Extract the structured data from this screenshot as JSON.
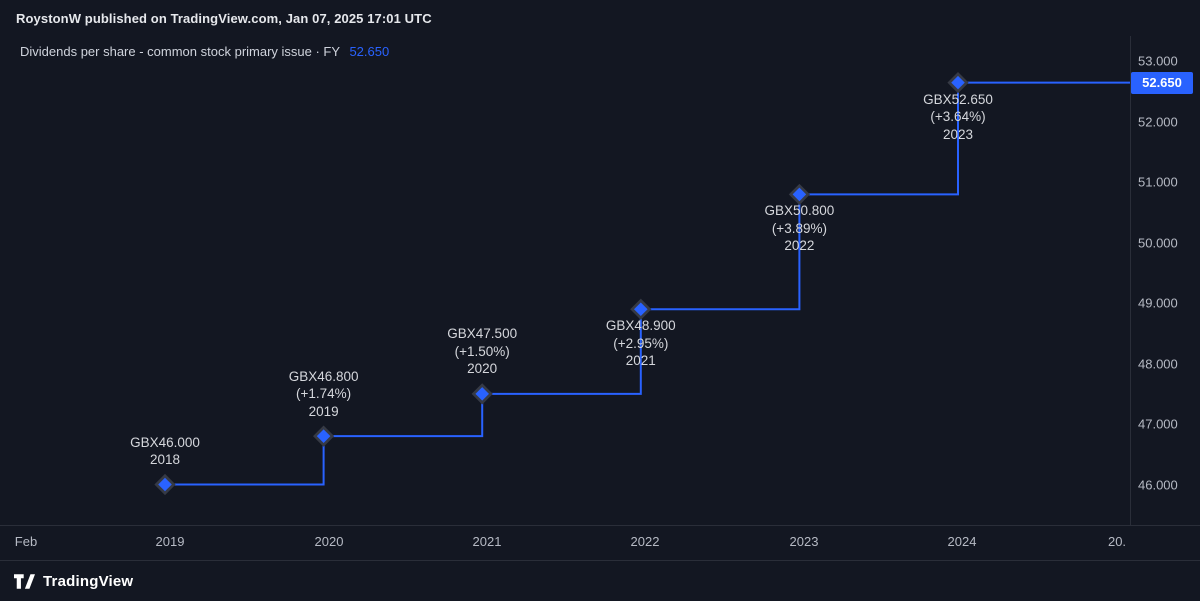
{
  "colors": {
    "accent": "#2962FF",
    "background": "#131722",
    "separator": "#2A2E39",
    "marker_halo": "#363A45",
    "label_text": "#D5D7DC",
    "axis_text": "#B6BAC4"
  },
  "attribution": {
    "text": "RoystonW published on TradingView.com, Jan 07, 2025 17:01 UTC"
  },
  "title": {
    "series_name": "Dividends per share - common stock primary issue · FY",
    "current_value": "52.650"
  },
  "price_label": {
    "text": "52.650",
    "value": 52.65
  },
  "footer": {
    "brand": "TradingView"
  },
  "chart_data": {
    "type": "line",
    "subtype": "step",
    "title": "Dividends per share - common stock primary issue (FY)",
    "unit": "GBX",
    "legend_position": "none",
    "grid": "off",
    "points": [
      {
        "year": 2018,
        "value": 46.0,
        "label_value": "GBX46.000",
        "label_pct": "",
        "label_year": "2018",
        "label_position": "above"
      },
      {
        "year": 2019,
        "value": 46.8,
        "label_value": "GBX46.800",
        "label_pct": "(+1.74%)",
        "label_year": "2019",
        "label_position": "above"
      },
      {
        "year": 2020,
        "value": 47.5,
        "label_value": "GBX47.500",
        "label_pct": "(+1.50%)",
        "label_year": "2020",
        "label_position": "above"
      },
      {
        "year": 2021,
        "value": 48.9,
        "label_value": "GBX48.900",
        "label_pct": "(+2.95%)",
        "label_year": "2021",
        "label_position": "below"
      },
      {
        "year": 2022,
        "value": 50.8,
        "label_value": "GBX50.800",
        "label_pct": "(+3.89%)",
        "label_year": "2022",
        "label_position": "below"
      },
      {
        "year": 2023,
        "value": 52.65,
        "label_value": "GBX52.650",
        "label_pct": "(+3.64%)",
        "label_year": "2023",
        "label_position": "below"
      }
    ],
    "y_axis": {
      "range": [
        45.6,
        53.3
      ],
      "ticks": [
        {
          "value": 53,
          "label": "53.000"
        },
        {
          "value": 52,
          "label": "52.000"
        },
        {
          "value": 51,
          "label": "51.000"
        },
        {
          "value": 50,
          "label": "50.000"
        },
        {
          "value": 49,
          "label": "49.000"
        },
        {
          "value": 48,
          "label": "48.000"
        },
        {
          "value": 47,
          "label": "47.000"
        },
        {
          "value": 46,
          "label": "46.000"
        }
      ]
    },
    "x_axis": {
      "labels": [
        "Feb",
        "2019",
        "2020",
        "2021",
        "2022",
        "2023",
        "2024",
        "20."
      ]
    }
  }
}
